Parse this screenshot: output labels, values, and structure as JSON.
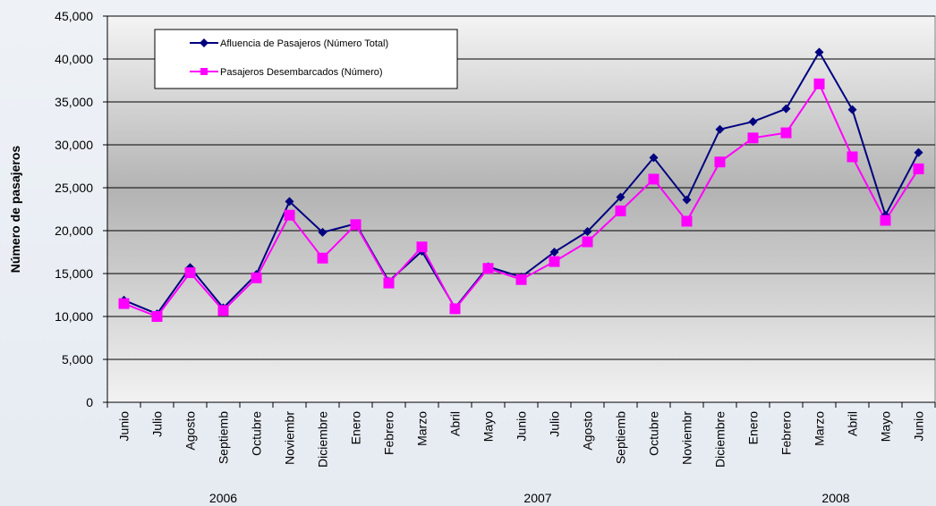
{
  "chart_data": {
    "type": "line",
    "ylabel": "Número de pasajeros",
    "xlabel": "",
    "ylim": [
      0,
      45000
    ],
    "yticks": [
      0,
      5000,
      10000,
      15000,
      20000,
      25000,
      30000,
      35000,
      40000,
      45000
    ],
    "ytick_labels": [
      "0",
      "5,000",
      "10,000",
      "15,000",
      "20,000",
      "25,000",
      "30,000",
      "35,000",
      "40,000",
      "45,000"
    ],
    "categories": [
      "Junio",
      "Julio",
      "Agosto",
      "Septiemb",
      "Octubre",
      "Noviembr",
      "Diciembre",
      "Enero",
      "Febrero",
      "Marzo",
      "Abril",
      "Mayo",
      "Junio",
      "Julio",
      "Agosto",
      "Septiemb",
      "Octubre",
      "Noviembr",
      "Diciembre",
      "Enero",
      "Febrero",
      "Marzo",
      "Abril",
      "Mayo",
      "Junio"
    ],
    "year_groups": [
      {
        "label": "2006",
        "start": 0,
        "end": 6
      },
      {
        "label": "2007",
        "start": 7,
        "end": 18
      },
      {
        "label": "2008",
        "start": 19,
        "end": 24
      }
    ],
    "grid": true,
    "legend_position": "top-left",
    "series": [
      {
        "name": "Afluencia de Pasajeros (Número Total)",
        "color": "#000080",
        "marker": "diamond",
        "values": [
          11900,
          10300,
          15700,
          11000,
          14900,
          23400,
          19800,
          20800,
          14100,
          17600,
          11000,
          15800,
          14600,
          17500,
          19900,
          23900,
          28500,
          23600,
          31800,
          32700,
          34200,
          40800,
          34100,
          21800,
          29100
        ]
      },
      {
        "name": "Pasajeros Desembarcados (Número)",
        "color": "#ff00ff",
        "marker": "square",
        "values": [
          11500,
          10000,
          15100,
          10700,
          14500,
          21800,
          16800,
          20700,
          13900,
          18100,
          10900,
          15600,
          14300,
          16400,
          18700,
          22300,
          26000,
          21100,
          28000,
          30800,
          31400,
          37100,
          28600,
          21200,
          27200
        ]
      }
    ]
  }
}
